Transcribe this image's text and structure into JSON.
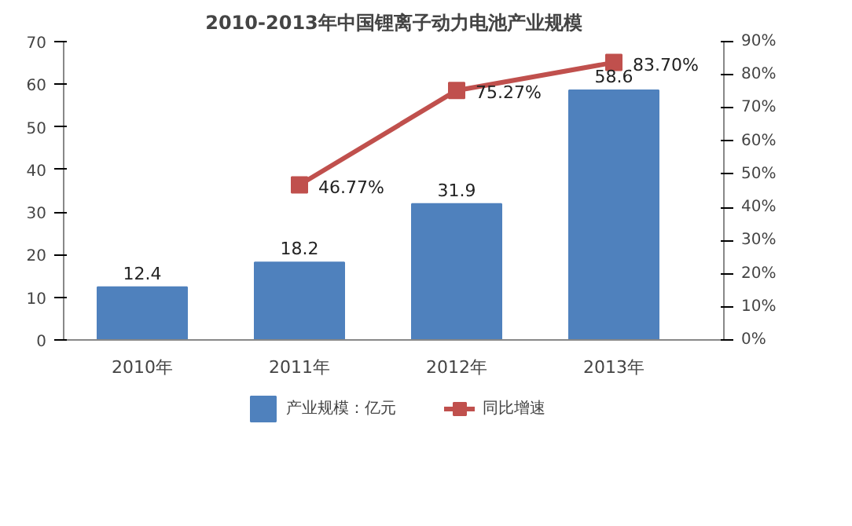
{
  "chart_data": {
    "type": "bar",
    "title": "2010-2013年中国锂离子动力电池产业规模",
    "categories": [
      "2010年",
      "2011年",
      "2012年",
      "2013年"
    ],
    "series": [
      {
        "name": "产业规模：亿元",
        "color": "#4f81bd",
        "values": [
          12.4,
          18.2,
          31.9,
          58.6
        ],
        "value_labels": [
          "12.4",
          "18.2",
          "31.9",
          "58.6"
        ]
      },
      {
        "name": "同比增速",
        "type": "line",
        "axis": "y2",
        "color": "#c0504d",
        "marker": "square",
        "values": [
          null,
          46.77,
          75.27,
          83.7
        ],
        "value_labels": [
          null,
          "46.77%",
          "75.27%",
          "83.70%"
        ]
      }
    ],
    "ylim": [
      0,
      70
    ],
    "yticks": [
      0,
      10,
      20,
      30,
      40,
      50,
      60,
      70
    ],
    "y2lim": [
      0,
      90
    ],
    "y2ticks": [
      {
        "value": 0,
        "label": "0%"
      },
      {
        "value": 10,
        "label": "10%"
      },
      {
        "value": 20,
        "label": "20%"
      },
      {
        "value": 30,
        "label": "30%"
      },
      {
        "value": 40,
        "label": "40%"
      },
      {
        "value": 50,
        "label": "50%"
      },
      {
        "value": 60,
        "label": "60%"
      },
      {
        "value": 70,
        "label": "70%"
      },
      {
        "value": 80,
        "label": "80%"
      },
      {
        "value": 90,
        "label": "90%"
      }
    ],
    "grid": false,
    "legend": "bottom"
  }
}
